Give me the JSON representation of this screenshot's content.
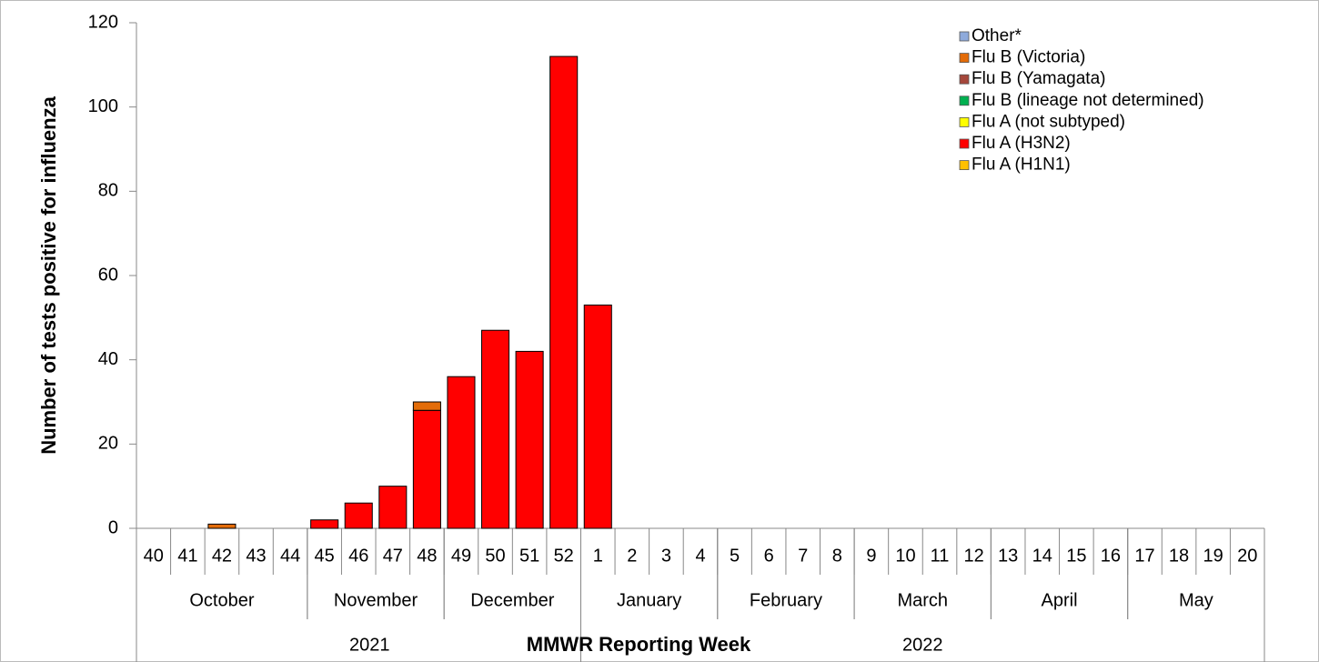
{
  "chart_data": {
    "type": "stacked_bar",
    "y_label": "Number of tests positive for influenza",
    "x_label": "MMWR Reporting Week",
    "categories": [
      "40",
      "41",
      "42",
      "43",
      "44",
      "45",
      "46",
      "47",
      "48",
      "49",
      "50",
      "51",
      "52",
      "1",
      "2",
      "3",
      "4",
      "5",
      "6",
      "7",
      "8",
      "9",
      "10",
      "11",
      "12",
      "13",
      "14",
      "15",
      "16",
      "17",
      "18",
      "19",
      "20"
    ],
    "month_groups": [
      {
        "label": "October",
        "span": 5
      },
      {
        "label": "November",
        "span": 4
      },
      {
        "label": "December",
        "span": 4
      },
      {
        "label": "January",
        "span": 4
      },
      {
        "label": "February",
        "span": 4
      },
      {
        "label": "March",
        "span": 4
      },
      {
        "label": "April",
        "span": 4
      },
      {
        "label": "May",
        "span": 4
      }
    ],
    "year_groups": [
      {
        "label": "2021",
        "span": 13
      },
      {
        "label": "2022",
        "span": 20
      }
    ],
    "ylim": [
      0,
      120
    ],
    "yticks": [
      0,
      20,
      40,
      60,
      80,
      100,
      120
    ],
    "legend": "top-right",
    "series": [
      {
        "name": "Flu A (H1N1)",
        "color": "#ffc000",
        "values": [
          0,
          0,
          0,
          0,
          0,
          0,
          0,
          0,
          0,
          0,
          0,
          0,
          0,
          0,
          0,
          0,
          0,
          0,
          0,
          0,
          0,
          0,
          0,
          0,
          0,
          0,
          0,
          0,
          0,
          0,
          0,
          0,
          0
        ]
      },
      {
        "name": "Flu A (H3N2)",
        "color": "#ff0000",
        "values": [
          0,
          0,
          0,
          0,
          0,
          2,
          6,
          10,
          28,
          36,
          47,
          42,
          112,
          53,
          0,
          0,
          0,
          0,
          0,
          0,
          0,
          0,
          0,
          0,
          0,
          0,
          0,
          0,
          0,
          0,
          0,
          0,
          0
        ]
      },
      {
        "name": "Flu A (not subtyped)",
        "color": "#ffff00",
        "values": [
          0,
          0,
          0,
          0,
          0,
          0,
          0,
          0,
          0,
          0,
          0,
          0,
          0,
          0,
          0,
          0,
          0,
          0,
          0,
          0,
          0,
          0,
          0,
          0,
          0,
          0,
          0,
          0,
          0,
          0,
          0,
          0,
          0
        ]
      },
      {
        "name": "Flu B (lineage not determined)",
        "color": "#00b050",
        "values": [
          0,
          0,
          0,
          0,
          0,
          0,
          0,
          0,
          0,
          0,
          0,
          0,
          0,
          0,
          0,
          0,
          0,
          0,
          0,
          0,
          0,
          0,
          0,
          0,
          0,
          0,
          0,
          0,
          0,
          0,
          0,
          0,
          0
        ]
      },
      {
        "name": "Flu B (Yamagata)",
        "color": "#a5473b",
        "values": [
          0,
          0,
          0,
          0,
          0,
          0,
          0,
          0,
          0,
          0,
          0,
          0,
          0,
          0,
          0,
          0,
          0,
          0,
          0,
          0,
          0,
          0,
          0,
          0,
          0,
          0,
          0,
          0,
          0,
          0,
          0,
          0,
          0
        ]
      },
      {
        "name": "Flu B (Victoria)",
        "color": "#e36c09",
        "values": [
          0,
          0,
          1,
          0,
          0,
          0,
          0,
          0,
          2,
          0,
          0,
          0,
          0,
          0,
          0,
          0,
          0,
          0,
          0,
          0,
          0,
          0,
          0,
          0,
          0,
          0,
          0,
          0,
          0,
          0,
          0,
          0,
          0
        ]
      },
      {
        "name": "Other*",
        "color": "#8eaadb",
        "values": [
          0,
          0,
          0,
          0,
          0,
          0,
          0,
          0,
          0,
          0,
          0,
          0,
          0,
          0,
          0,
          0,
          0,
          0,
          0,
          0,
          0,
          0,
          0,
          0,
          0,
          0,
          0,
          0,
          0,
          0,
          0,
          0,
          0
        ]
      }
    ]
  }
}
